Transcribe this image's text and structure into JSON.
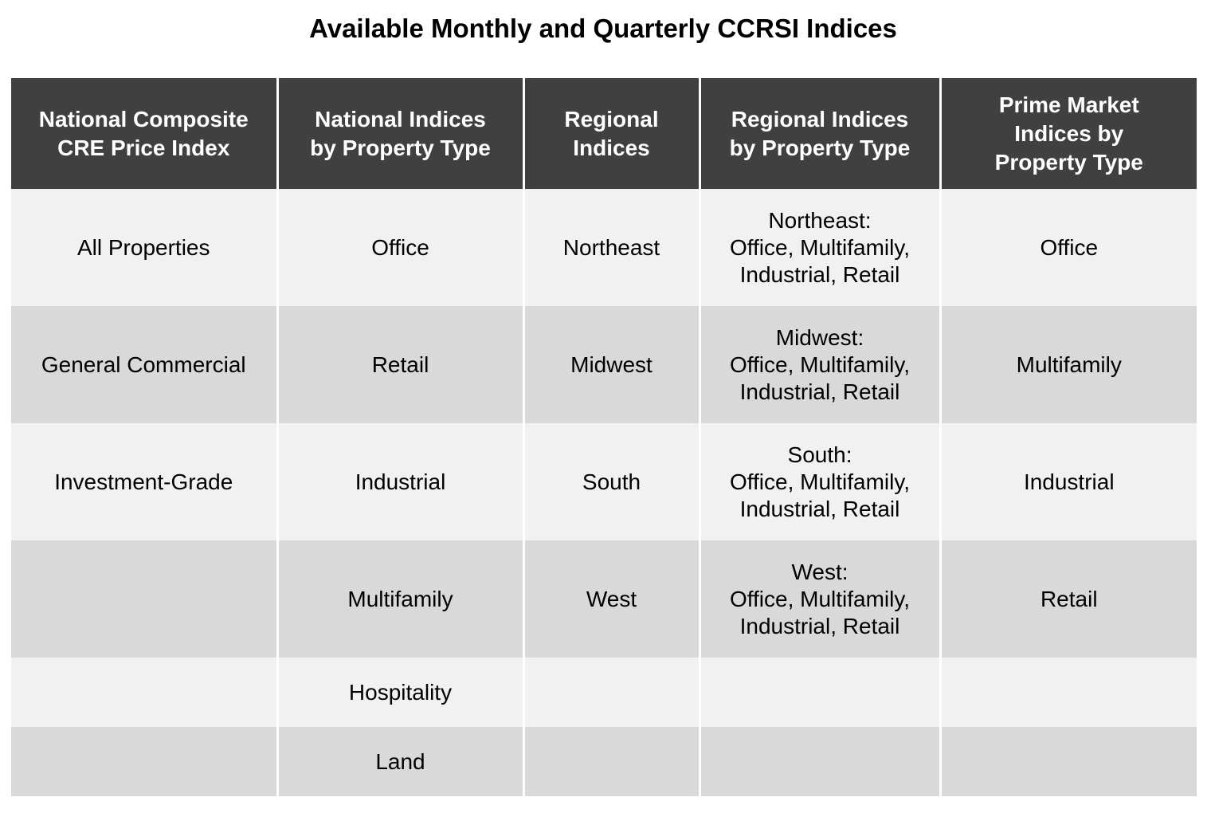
{
  "title": "Available Monthly and Quarterly CCRSI Indices",
  "columns": [
    "National Composite\nCRE Price Index",
    "National Indices\nby Property Type",
    "Regional\nIndices",
    "Regional Indices\nby Property Type",
    "Prime Market\nIndices by\nProperty Type"
  ],
  "rows": [
    [
      "All Properties",
      "Office",
      "Northeast",
      "Northeast:\nOffice, Multifamily,\nIndustrial, Retail",
      "Office"
    ],
    [
      "General Commercial",
      "Retail",
      "Midwest",
      "Midwest:\nOffice, Multifamily,\nIndustrial, Retail",
      "Multifamily"
    ],
    [
      "Investment-Grade",
      "Industrial",
      "South",
      "South:\nOffice, Multifamily,\nIndustrial, Retail",
      "Industrial"
    ],
    [
      "",
      "Multifamily",
      "West",
      "West:\nOffice, Multifamily,\nIndustrial, Retail",
      "Retail"
    ],
    [
      "",
      "Hospitality",
      "",
      "",
      ""
    ],
    [
      "",
      "Land",
      "",
      "",
      ""
    ]
  ],
  "colors": {
    "header_bg": "#404040",
    "header_text": "#ffffff",
    "row_light": "#f1f1f1",
    "row_dark": "#d9d9d9"
  }
}
